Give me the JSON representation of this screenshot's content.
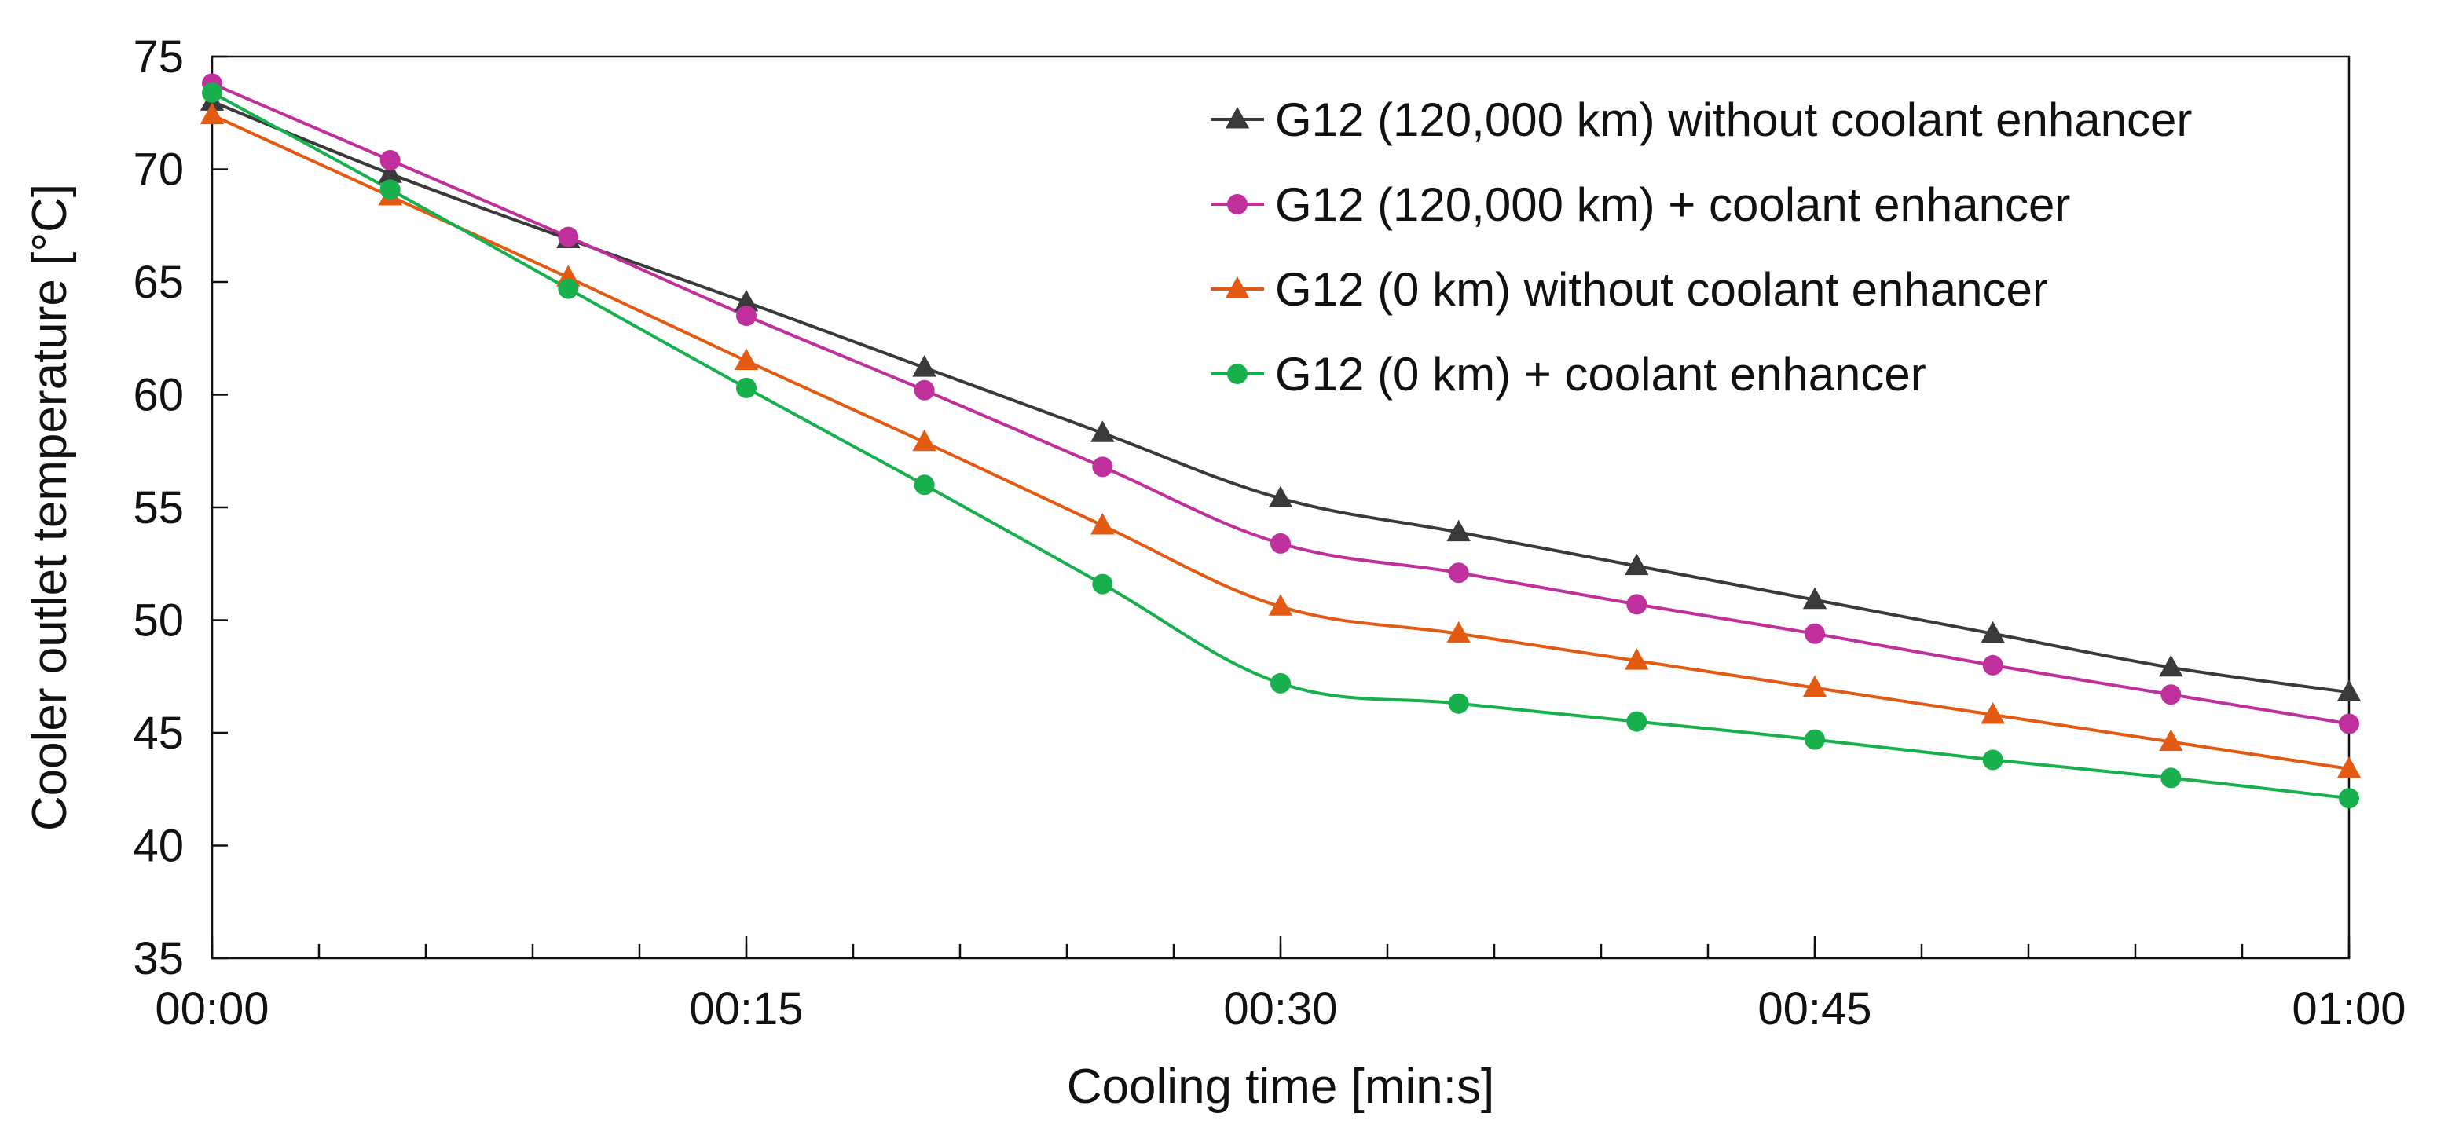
{
  "chart_data": {
    "type": "line",
    "title": "",
    "xlabel": "Cooling time [min:s]",
    "ylabel": "Cooler outlet temperature [°C]",
    "x_seconds": [
      0,
      5,
      10,
      15,
      20,
      25,
      30,
      35,
      40,
      45,
      50,
      55,
      60
    ],
    "xlim": [
      0,
      60
    ],
    "ylim": [
      35,
      75
    ],
    "x_ticks": [
      0,
      15,
      30,
      45,
      60
    ],
    "x_tick_labels": [
      "00:00",
      "00:15",
      "00:30",
      "00:45",
      "01:00"
    ],
    "x_minor_tick_step": 3,
    "y_ticks": [
      35,
      40,
      45,
      50,
      55,
      60,
      65,
      70,
      75
    ],
    "y_tick_labels": [
      "35",
      "40",
      "45",
      "50",
      "55",
      "60",
      "65",
      "70",
      "75"
    ],
    "grid": false,
    "legend_position": "top-right",
    "series": [
      {
        "name": "G12 (120,000 km) without coolant enhancer",
        "color": "#3a3a3a",
        "marker": "triangle",
        "values": [
          73.0,
          69.8,
          66.9,
          64.1,
          61.2,
          58.3,
          55.4,
          53.9,
          52.4,
          50.9,
          49.4,
          47.9,
          46.8
        ]
      },
      {
        "name": "G12 (120,000 km) + coolant enhancer",
        "color": "#c0309c",
        "marker": "circle",
        "values": [
          73.8,
          70.4,
          67.0,
          63.5,
          60.2,
          56.8,
          53.4,
          52.1,
          50.7,
          49.4,
          48.0,
          46.7,
          45.4
        ]
      },
      {
        "name": "G12 (0 km) without coolant enhancer",
        "color": "#e35a12",
        "marker": "triangle",
        "values": [
          72.4,
          68.8,
          65.2,
          61.5,
          57.9,
          54.2,
          50.6,
          49.4,
          48.2,
          47.0,
          45.8,
          44.6,
          43.4
        ]
      },
      {
        "name": "G12 (0 km) + coolant enhancer",
        "color": "#17b04c",
        "marker": "circle",
        "values": [
          73.4,
          69.1,
          64.7,
          60.3,
          56.0,
          51.6,
          47.2,
          46.3,
          45.5,
          44.7,
          43.8,
          43.0,
          42.1
        ]
      }
    ]
  }
}
